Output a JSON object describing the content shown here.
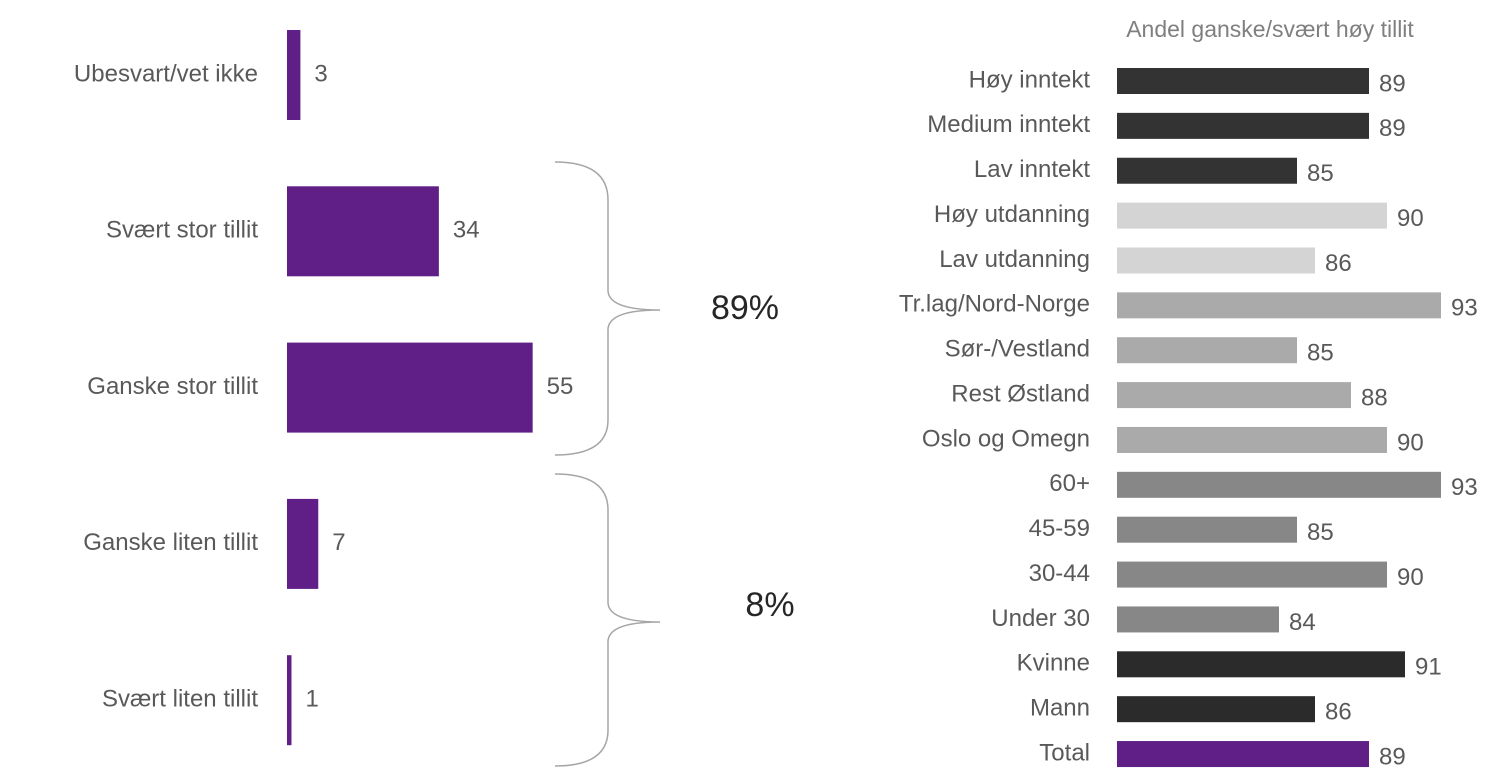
{
  "chart_data": [
    {
      "type": "bar",
      "orientation": "horizontal",
      "categories": [
        "Ubesvart/vet ikke",
        "Svært stor tillit",
        "Ganske stor tillit",
        "Ganske liten tillit",
        "Svært liten tillit"
      ],
      "values": [
        3,
        34,
        55,
        7,
        1
      ],
      "color": "#5f1f87",
      "xlim": [
        0,
        60
      ],
      "annotations": [
        "89%",
        "8%"
      ]
    },
    {
      "type": "bar",
      "orientation": "horizontal",
      "title": "Andel ganske/svært høy tillit",
      "categories": [
        "Høy inntekt",
        "Medium inntekt",
        "Lav inntekt",
        "Høy utdanning",
        "Lav utdanning",
        "Tr.lag/Nord-Norge",
        "Sør-/Vestland",
        "Rest Østland",
        "Oslo og Omegn",
        "60+",
        "45-59",
        "30-44",
        "Under 30",
        "Kvinne",
        "Mann",
        "Total"
      ],
      "values": [
        89,
        89,
        85,
        90,
        86,
        93,
        85,
        88,
        90,
        93,
        85,
        90,
        84,
        91,
        86,
        89
      ],
      "colors": [
        "#333333",
        "#333333",
        "#333333",
        "#d4d4d4",
        "#d4d4d4",
        "#aaaaaa",
        "#aaaaaa",
        "#aaaaaa",
        "#aaaaaa",
        "#878787",
        "#878787",
        "#878787",
        "#878787",
        "#2b2b2b",
        "#2b2b2b",
        "#5f1f87"
      ],
      "xlim": [
        75,
        95
      ]
    }
  ]
}
